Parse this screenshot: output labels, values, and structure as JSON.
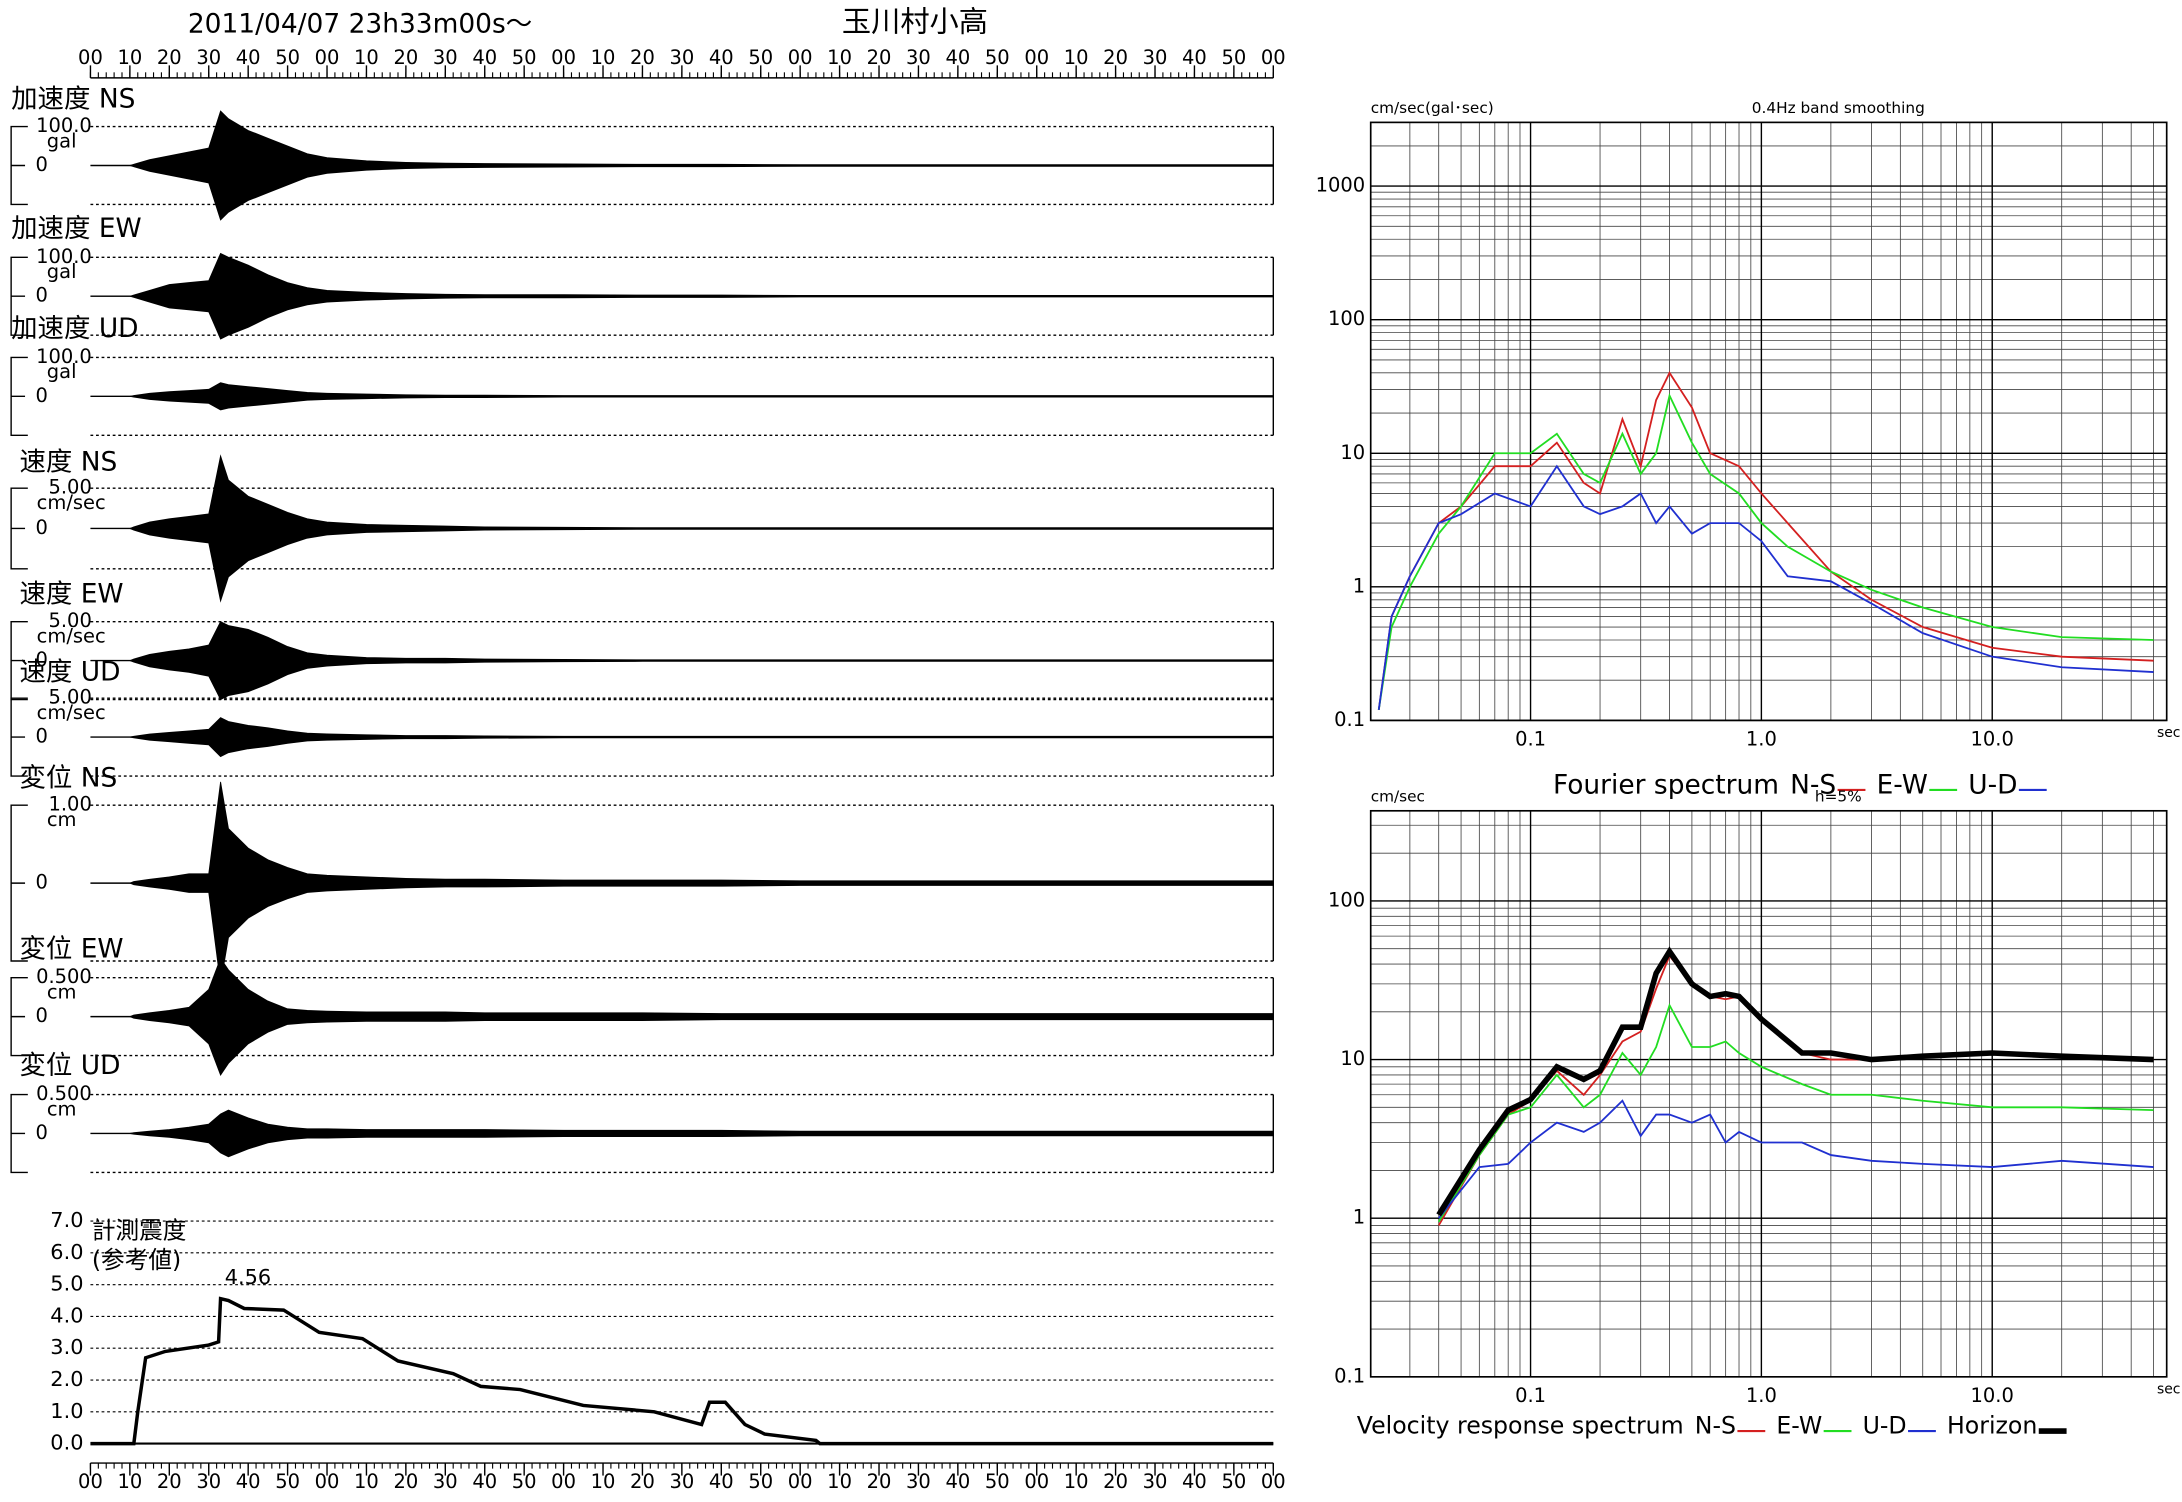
{
  "header": {
    "datetime": "2011/04/07  23h33m00s〜",
    "station": "玉川村小高"
  },
  "chart_data": [
    {
      "type": "waveform",
      "color": "#000000",
      "xlim": [
        0,
        300
      ],
      "xticks": [
        {
          "value": 0,
          "label": "00"
        },
        {
          "value": 10,
          "label": "10"
        },
        {
          "value": 20,
          "label": "20"
        },
        {
          "value": 30,
          "label": "30"
        },
        {
          "value": 40,
          "label": "40"
        },
        {
          "value": 50,
          "label": "50"
        },
        {
          "value": 60,
          "label": "00"
        },
        {
          "value": 70,
          "label": "10"
        },
        {
          "value": 80,
          "label": "20"
        },
        {
          "value": 90,
          "label": "30"
        },
        {
          "value": 100,
          "label": "40"
        },
        {
          "value": 110,
          "label": "50"
        },
        {
          "value": 120,
          "label": "00"
        },
        {
          "value": 130,
          "label": "10"
        },
        {
          "value": 140,
          "label": "20"
        },
        {
          "value": 150,
          "label": "30"
        },
        {
          "value": 160,
          "label": "40"
        },
        {
          "value": 170,
          "label": "50"
        },
        {
          "value": 180,
          "label": "00"
        },
        {
          "value": 190,
          "label": "10"
        },
        {
          "value": 200,
          "label": "20"
        },
        {
          "value": 210,
          "label": "30"
        },
        {
          "value": 220,
          "label": "40"
        },
        {
          "value": 230,
          "label": "50"
        },
        {
          "value": 240,
          "label": "00"
        },
        {
          "value": 250,
          "label": "10"
        },
        {
          "value": 260,
          "label": "20"
        },
        {
          "value": 270,
          "label": "30"
        },
        {
          "value": 280,
          "label": "40"
        },
        {
          "value": 290,
          "label": "50"
        },
        {
          "value": 300,
          "label": "00"
        }
      ],
      "x": [
        0,
        10,
        11,
        15,
        20,
        25,
        30,
        33,
        35,
        40,
        45,
        50,
        55,
        60,
        70,
        80,
        90,
        100,
        120,
        140,
        160,
        180,
        200,
        220,
        240,
        260,
        280,
        300
      ],
      "series": [
        {
          "name": "加速度 NS",
          "unit": "gal",
          "yticks": [
            0,
            {
              "value": 100,
              "label": "100.0"
            }
          ],
          "values": [
            0,
            0,
            3,
            15,
            25,
            35,
            45,
            140,
            120,
            90,
            70,
            50,
            30,
            20,
            12,
            8,
            6,
            5,
            4,
            3,
            3,
            2,
            2,
            2,
            2,
            2,
            2,
            2
          ]
        },
        {
          "name": "加速度 EW",
          "unit": "gal",
          "yticks": [
            0,
            {
              "value": 100,
              "label": "100.0"
            }
          ],
          "values": [
            0,
            0,
            3,
            15,
            30,
            35,
            40,
            110,
            100,
            80,
            55,
            35,
            22,
            15,
            10,
            7,
            5,
            4,
            4,
            3,
            3,
            2,
            2,
            2,
            2,
            2,
            2,
            2
          ]
        },
        {
          "name": "加速度 UD",
          "unit": "gal",
          "yticks": [
            0,
            {
              "value": 100,
              "label": "100.0"
            }
          ],
          "values": [
            0,
            0,
            2,
            8,
            12,
            15,
            18,
            35,
            30,
            25,
            20,
            15,
            10,
            8,
            6,
            4,
            3,
            3,
            2,
            2,
            2,
            2,
            2,
            2,
            2,
            2,
            2,
            2
          ]
        },
        {
          "name": "速度 NS",
          "unit": "cm/sec",
          "yticks": [
            0,
            {
              "value": 5,
              "label": "5.00"
            }
          ],
          "values": [
            0,
            0,
            0.2,
            0.8,
            1.2,
            1.5,
            1.8,
            9,
            6,
            4,
            3,
            2,
            1.2,
            0.8,
            0.5,
            0.4,
            0.3,
            0.2,
            0.15,
            0.1,
            0.1,
            0.1,
            0.1,
            0.1,
            0.1,
            0.1,
            0.1,
            0.1
          ]
        },
        {
          "name": "速度 EW",
          "unit": "cm/sec",
          "yticks": [
            0,
            {
              "value": 5,
              "label": "5.00"
            }
          ],
          "values": [
            0,
            0,
            0.2,
            0.8,
            1.2,
            1.5,
            2,
            5,
            4.5,
            4,
            3,
            1.8,
            1,
            0.7,
            0.4,
            0.3,
            0.3,
            0.2,
            0.15,
            0.1,
            0.1,
            0.1,
            0.1,
            0.1,
            0.1,
            0.1,
            0.1,
            0.1
          ]
        },
        {
          "name": "速度 UD",
          "unit": "cm/sec",
          "yticks": [
            0,
            {
              "value": 5,
              "label": "5.00"
            }
          ],
          "values": [
            0,
            0,
            0.1,
            0.4,
            0.6,
            0.8,
            1,
            2.5,
            2,
            1.5,
            1.2,
            0.8,
            0.5,
            0.4,
            0.3,
            0.2,
            0.2,
            0.15,
            0.1,
            0.1,
            0.1,
            0.1,
            0.1,
            0.1,
            0.1,
            0.1,
            0.1,
            0.1
          ]
        },
        {
          "name": "変位 NS",
          "unit": "cm",
          "yticks": [
            0,
            {
              "value": 1,
              "label": "1.00"
            }
          ],
          "values": [
            0,
            0,
            0.02,
            0.05,
            0.08,
            0.12,
            0.12,
            1.3,
            0.7,
            0.45,
            0.3,
            0.2,
            0.12,
            0.1,
            0.08,
            0.06,
            0.05,
            0.05,
            0.04,
            0.04,
            0.04,
            0.03,
            0.03,
            0.03,
            0.03,
            0.03,
            0.03,
            0.03
          ]
        },
        {
          "name": "変位 EW",
          "unit": "cm",
          "yticks": [
            0,
            {
              "value": 0.5,
              "label": "0.500"
            }
          ],
          "values": [
            0,
            0,
            0.02,
            0.05,
            0.08,
            0.12,
            0.35,
            0.75,
            0.6,
            0.35,
            0.2,
            0.1,
            0.08,
            0.07,
            0.06,
            0.06,
            0.06,
            0.05,
            0.05,
            0.05,
            0.04,
            0.04,
            0.04,
            0.04,
            0.04,
            0.04,
            0.04,
            0.04
          ]
        },
        {
          "name": "変位 UD",
          "unit": "cm",
          "yticks": [
            0,
            {
              "value": 0.5,
              "label": "0.500"
            }
          ],
          "values": [
            0,
            0,
            0.01,
            0.03,
            0.05,
            0.08,
            0.12,
            0.25,
            0.3,
            0.2,
            0.12,
            0.08,
            0.06,
            0.06,
            0.05,
            0.05,
            0.05,
            0.05,
            0.04,
            0.04,
            0.04,
            0.03,
            0.03,
            0.03,
            0.03,
            0.03,
            0.03,
            0.03
          ]
        }
      ]
    },
    {
      "type": "line",
      "title": "計測震度",
      "subtitle": "(参考値)",
      "color": "#000000",
      "peak": 4.56,
      "ylim": [
        0,
        7
      ],
      "yticks": [
        {
          "value": 0,
          "label": "0.0"
        },
        {
          "value": 1,
          "label": "1.0"
        },
        {
          "value": 2,
          "label": "2.0"
        },
        {
          "value": 3,
          "label": "3.0"
        },
        {
          "value": 4,
          "label": "4.0"
        },
        {
          "value": 5,
          "label": "5.0"
        },
        {
          "value": 6,
          "label": "6.0"
        },
        {
          "value": 7,
          "label": "7.0"
        }
      ],
      "x": [
        0,
        11,
        12,
        14,
        19,
        30,
        32.5,
        33,
        35,
        39,
        49,
        58,
        69,
        78,
        92,
        99,
        109,
        125,
        143,
        155,
        157,
        161,
        166,
        171,
        184,
        185,
        300
      ],
      "values": [
        0,
        0,
        1.0,
        2.7,
        2.9,
        3.1,
        3.2,
        4.56,
        4.5,
        4.25,
        4.2,
        3.5,
        3.3,
        2.6,
        2.2,
        1.8,
        1.7,
        1.2,
        1.0,
        0.6,
        1.3,
        1.3,
        0.6,
        0.3,
        0.1,
        0,
        0
      ]
    },
    {
      "type": "loglog",
      "title": "Fourier spectrum",
      "subtitle": "0.4Hz band smoothing",
      "y_label": "cm/sec(gal･sec)",
      "x_label": "sec",
      "grid": true,
      "xlim": [
        0.0203,
        57
      ],
      "ylim": [
        0.1,
        3000
      ],
      "xticks": [
        0.1,
        {
          "value": 1,
          "label": "1.0"
        },
        {
          "value": 10,
          "label": "10.0"
        }
      ],
      "yticks": [
        0.1,
        1,
        10,
        100,
        1000
      ],
      "x": [
        0.022,
        0.025,
        0.03,
        0.04,
        0.05,
        0.07,
        0.1,
        0.13,
        0.17,
        0.2,
        0.25,
        0.3,
        0.35,
        0.4,
        0.5,
        0.6,
        0.8,
        1.0,
        1.3,
        2,
        3,
        5,
        10,
        20,
        50
      ],
      "series": [
        {
          "name": "N-S",
          "color": "#d42020",
          "values": [
            0.12,
            0.6,
            1.2,
            3,
            4,
            8,
            8,
            12,
            6,
            5,
            18,
            8,
            25,
            40,
            22,
            10,
            8,
            5,
            3,
            1.3,
            0.8,
            0.5,
            0.35,
            0.3,
            0.28
          ]
        },
        {
          "name": "E-W",
          "color": "#22dd22",
          "values": [
            0.12,
            0.5,
            1.0,
            2.5,
            4,
            10,
            10,
            14,
            7,
            6,
            14,
            7,
            10,
            27,
            12,
            7,
            5,
            3,
            2,
            1.3,
            0.95,
            0.7,
            0.5,
            0.42,
            0.4
          ]
        },
        {
          "name": "U-D",
          "color": "#2030d0",
          "values": [
            0.12,
            0.6,
            1.2,
            3,
            3.5,
            5,
            4,
            8,
            4,
            3.5,
            4,
            5,
            3,
            4,
            2.5,
            3,
            3,
            2.2,
            1.2,
            1.1,
            0.75,
            0.45,
            0.3,
            0.25,
            0.23
          ]
        }
      ]
    },
    {
      "type": "loglog",
      "title": "Velocity response spectrum",
      "subtitle": "h=5%",
      "y_label": "cm/sec",
      "x_label": "sec",
      "grid": true,
      "xlim": [
        0.0203,
        57
      ],
      "ylim": [
        0.1,
        370
      ],
      "xticks": [
        0.1,
        {
          "value": 1,
          "label": "1.0"
        },
        {
          "value": 10,
          "label": "10.0"
        }
      ],
      "yticks": [
        0.1,
        1,
        10,
        100
      ],
      "x": [
        0.04,
        0.06,
        0.08,
        0.1,
        0.13,
        0.17,
        0.2,
        0.25,
        0.3,
        0.35,
        0.4,
        0.5,
        0.6,
        0.7,
        0.8,
        1.0,
        1.5,
        2,
        3,
        5,
        10,
        20,
        50
      ],
      "series": [
        {
          "name": "N-S",
          "color": "#d42020",
          "values": [
            0.9,
            2.5,
            4.5,
            5.5,
            8.5,
            6,
            8,
            13,
            15,
            28,
            45,
            30,
            25,
            24,
            25,
            18,
            11,
            10,
            10,
            10.5,
            11,
            10.5,
            10
          ]
        },
        {
          "name": "E-W",
          "color": "#22dd22",
          "values": [
            0.95,
            2.5,
            4.5,
            5,
            8,
            5,
            6,
            11,
            8,
            12,
            22,
            12,
            12,
            13,
            11,
            9,
            7,
            6,
            6,
            5.5,
            5,
            5,
            4.8
          ]
        },
        {
          "name": "U-D",
          "color": "#2030d0",
          "values": [
            1.0,
            2.1,
            2.2,
            3,
            4,
            3.5,
            4,
            5.5,
            3.3,
            4.5,
            4.5,
            4,
            4.5,
            3,
            3.5,
            3,
            3,
            2.5,
            2.3,
            2.2,
            2.1,
            2.3,
            2.1
          ]
        },
        {
          "name": "Horizon",
          "color": "#000000",
          "bold": true,
          "values": [
            1.05,
            2.7,
            4.8,
            5.6,
            9,
            7.5,
            8.5,
            16,
            16,
            35,
            48,
            30,
            25,
            26,
            25,
            18,
            11,
            11,
            10,
            10.5,
            11,
            10.5,
            10
          ]
        }
      ]
    }
  ]
}
